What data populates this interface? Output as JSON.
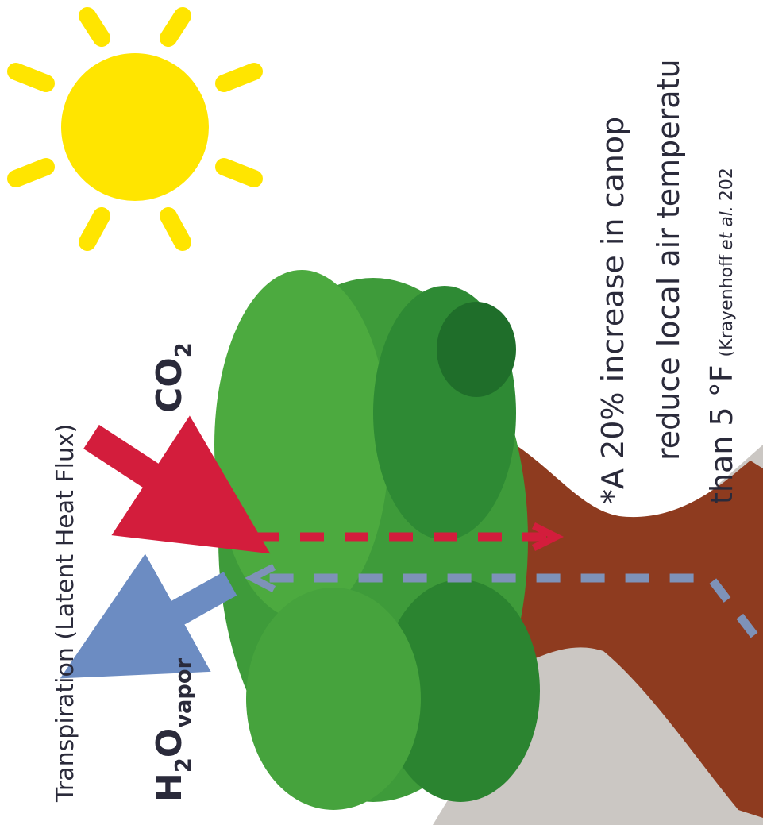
{
  "labels": {
    "transpiration": "Transpiration (Latent Heat Flux)",
    "h2o": {
      "h": "H",
      "two": "2",
      "o": "O",
      "vapor": "vapor"
    },
    "co2": {
      "co": "CO",
      "two": "2"
    }
  },
  "note": {
    "line1": "*A 20% increase in canop",
    "line2": "reduce local air temperatu",
    "line3": "than 5 °F",
    "citation": "(Krayenhoff",
    "citation_italic": "et al.",
    "citation_year": "202"
  }
}
